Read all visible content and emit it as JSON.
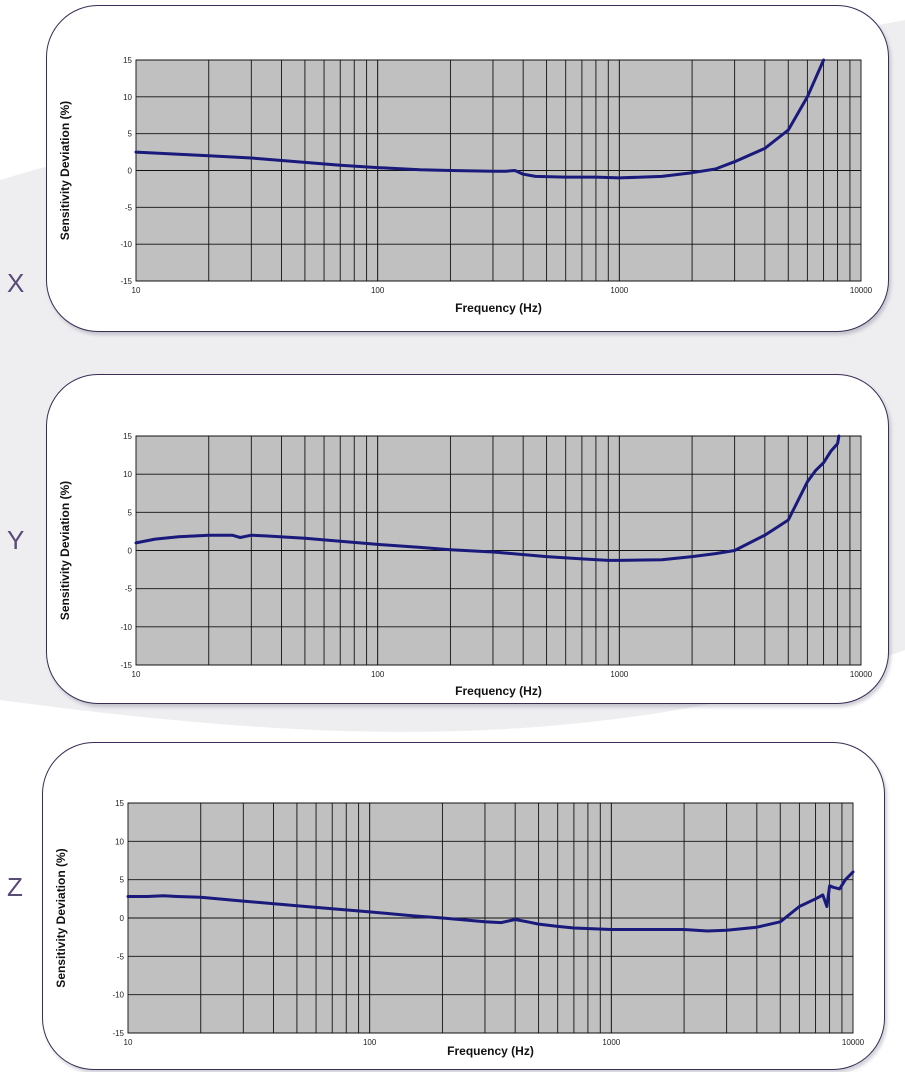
{
  "axis_letters": [
    "X",
    "Y",
    "Z"
  ],
  "chart_data": [
    {
      "type": "line",
      "panel_letter": "X",
      "xlabel": "Frequency (Hz)",
      "ylabel": "Sensitivity Deviation (%)",
      "x_scale": "log",
      "xlim": [
        10,
        10000
      ],
      "ylim": [
        -15,
        15
      ],
      "x_ticks": [
        10,
        100,
        1000,
        10000
      ],
      "y_ticks": [
        15,
        10,
        5,
        0,
        -5,
        -10,
        -15
      ],
      "grid": true,
      "series": [
        {
          "color": "#1a1a7c",
          "x": [
            10,
            15,
            20,
            30,
            50,
            70,
            100,
            150,
            200,
            300,
            340,
            370,
            400,
            450,
            600,
            800,
            1000,
            1500,
            2000,
            2500,
            3000,
            4000,
            5000,
            6000,
            7000
          ],
          "y": [
            2.5,
            2.2,
            2.0,
            1.7,
            1.1,
            0.7,
            0.4,
            0.1,
            0.0,
            -0.1,
            -0.1,
            0.0,
            -0.5,
            -0.8,
            -0.9,
            -0.9,
            -1.0,
            -0.8,
            -0.3,
            0.2,
            1.2,
            3.0,
            5.5,
            10.0,
            15.0
          ]
        }
      ]
    },
    {
      "type": "line",
      "panel_letter": "Y",
      "xlabel": "Frequency (Hz)",
      "ylabel": "Sensitivity Deviation (%)",
      "x_scale": "log",
      "xlim": [
        10,
        10000
      ],
      "ylim": [
        -15,
        15
      ],
      "x_ticks": [
        10,
        100,
        1000,
        10000
      ],
      "y_ticks": [
        15,
        10,
        5,
        0,
        -5,
        -10,
        -15
      ],
      "grid": true,
      "series": [
        {
          "color": "#1a1a7c",
          "x": [
            10,
            12,
            15,
            20,
            25,
            27,
            30,
            35,
            50,
            70,
            100,
            150,
            200,
            300,
            500,
            700,
            900,
            1000,
            1500,
            2000,
            2500,
            3000,
            4000,
            5000,
            6000,
            6500,
            7000,
            7500,
            8000,
            8100
          ],
          "y": [
            1.0,
            1.5,
            1.8,
            2.0,
            2.0,
            1.7,
            2.0,
            1.9,
            1.6,
            1.2,
            0.8,
            0.4,
            0.1,
            -0.2,
            -0.8,
            -1.1,
            -1.3,
            -1.3,
            -1.2,
            -0.8,
            -0.4,
            0.0,
            2.0,
            4.0,
            9.0,
            10.5,
            11.5,
            13.0,
            14.0,
            15.0
          ]
        }
      ]
    },
    {
      "type": "line",
      "panel_letter": "Z",
      "xlabel": "Frequency (Hz)",
      "ylabel": "Sensitivity Deviation (%)",
      "x_scale": "log",
      "xlim": [
        10,
        10000
      ],
      "ylim": [
        -15,
        15
      ],
      "x_ticks": [
        10,
        100,
        1000,
        10000
      ],
      "y_ticks": [
        15,
        10,
        5,
        0,
        -5,
        -10,
        -15
      ],
      "grid": true,
      "series": [
        {
          "color": "#1a1a7c",
          "x": [
            10,
            12,
            14,
            16,
            20,
            30,
            50,
            70,
            100,
            150,
            200,
            300,
            350,
            400,
            450,
            500,
            600,
            700,
            1000,
            1500,
            2000,
            2500,
            3000,
            4000,
            5000,
            6000,
            7000,
            7500,
            7800,
            8000,
            8300,
            8800,
            9300,
            10000
          ],
          "y": [
            2.8,
            2.8,
            2.9,
            2.8,
            2.7,
            2.2,
            1.6,
            1.2,
            0.8,
            0.3,
            0.0,
            -0.5,
            -0.6,
            -0.2,
            -0.5,
            -0.8,
            -1.1,
            -1.3,
            -1.5,
            -1.5,
            -1.5,
            -1.7,
            -1.6,
            -1.2,
            -0.5,
            1.5,
            2.5,
            3.0,
            1.5,
            4.2,
            4.0,
            3.8,
            5.0,
            6.0
          ]
        }
      ]
    }
  ]
}
